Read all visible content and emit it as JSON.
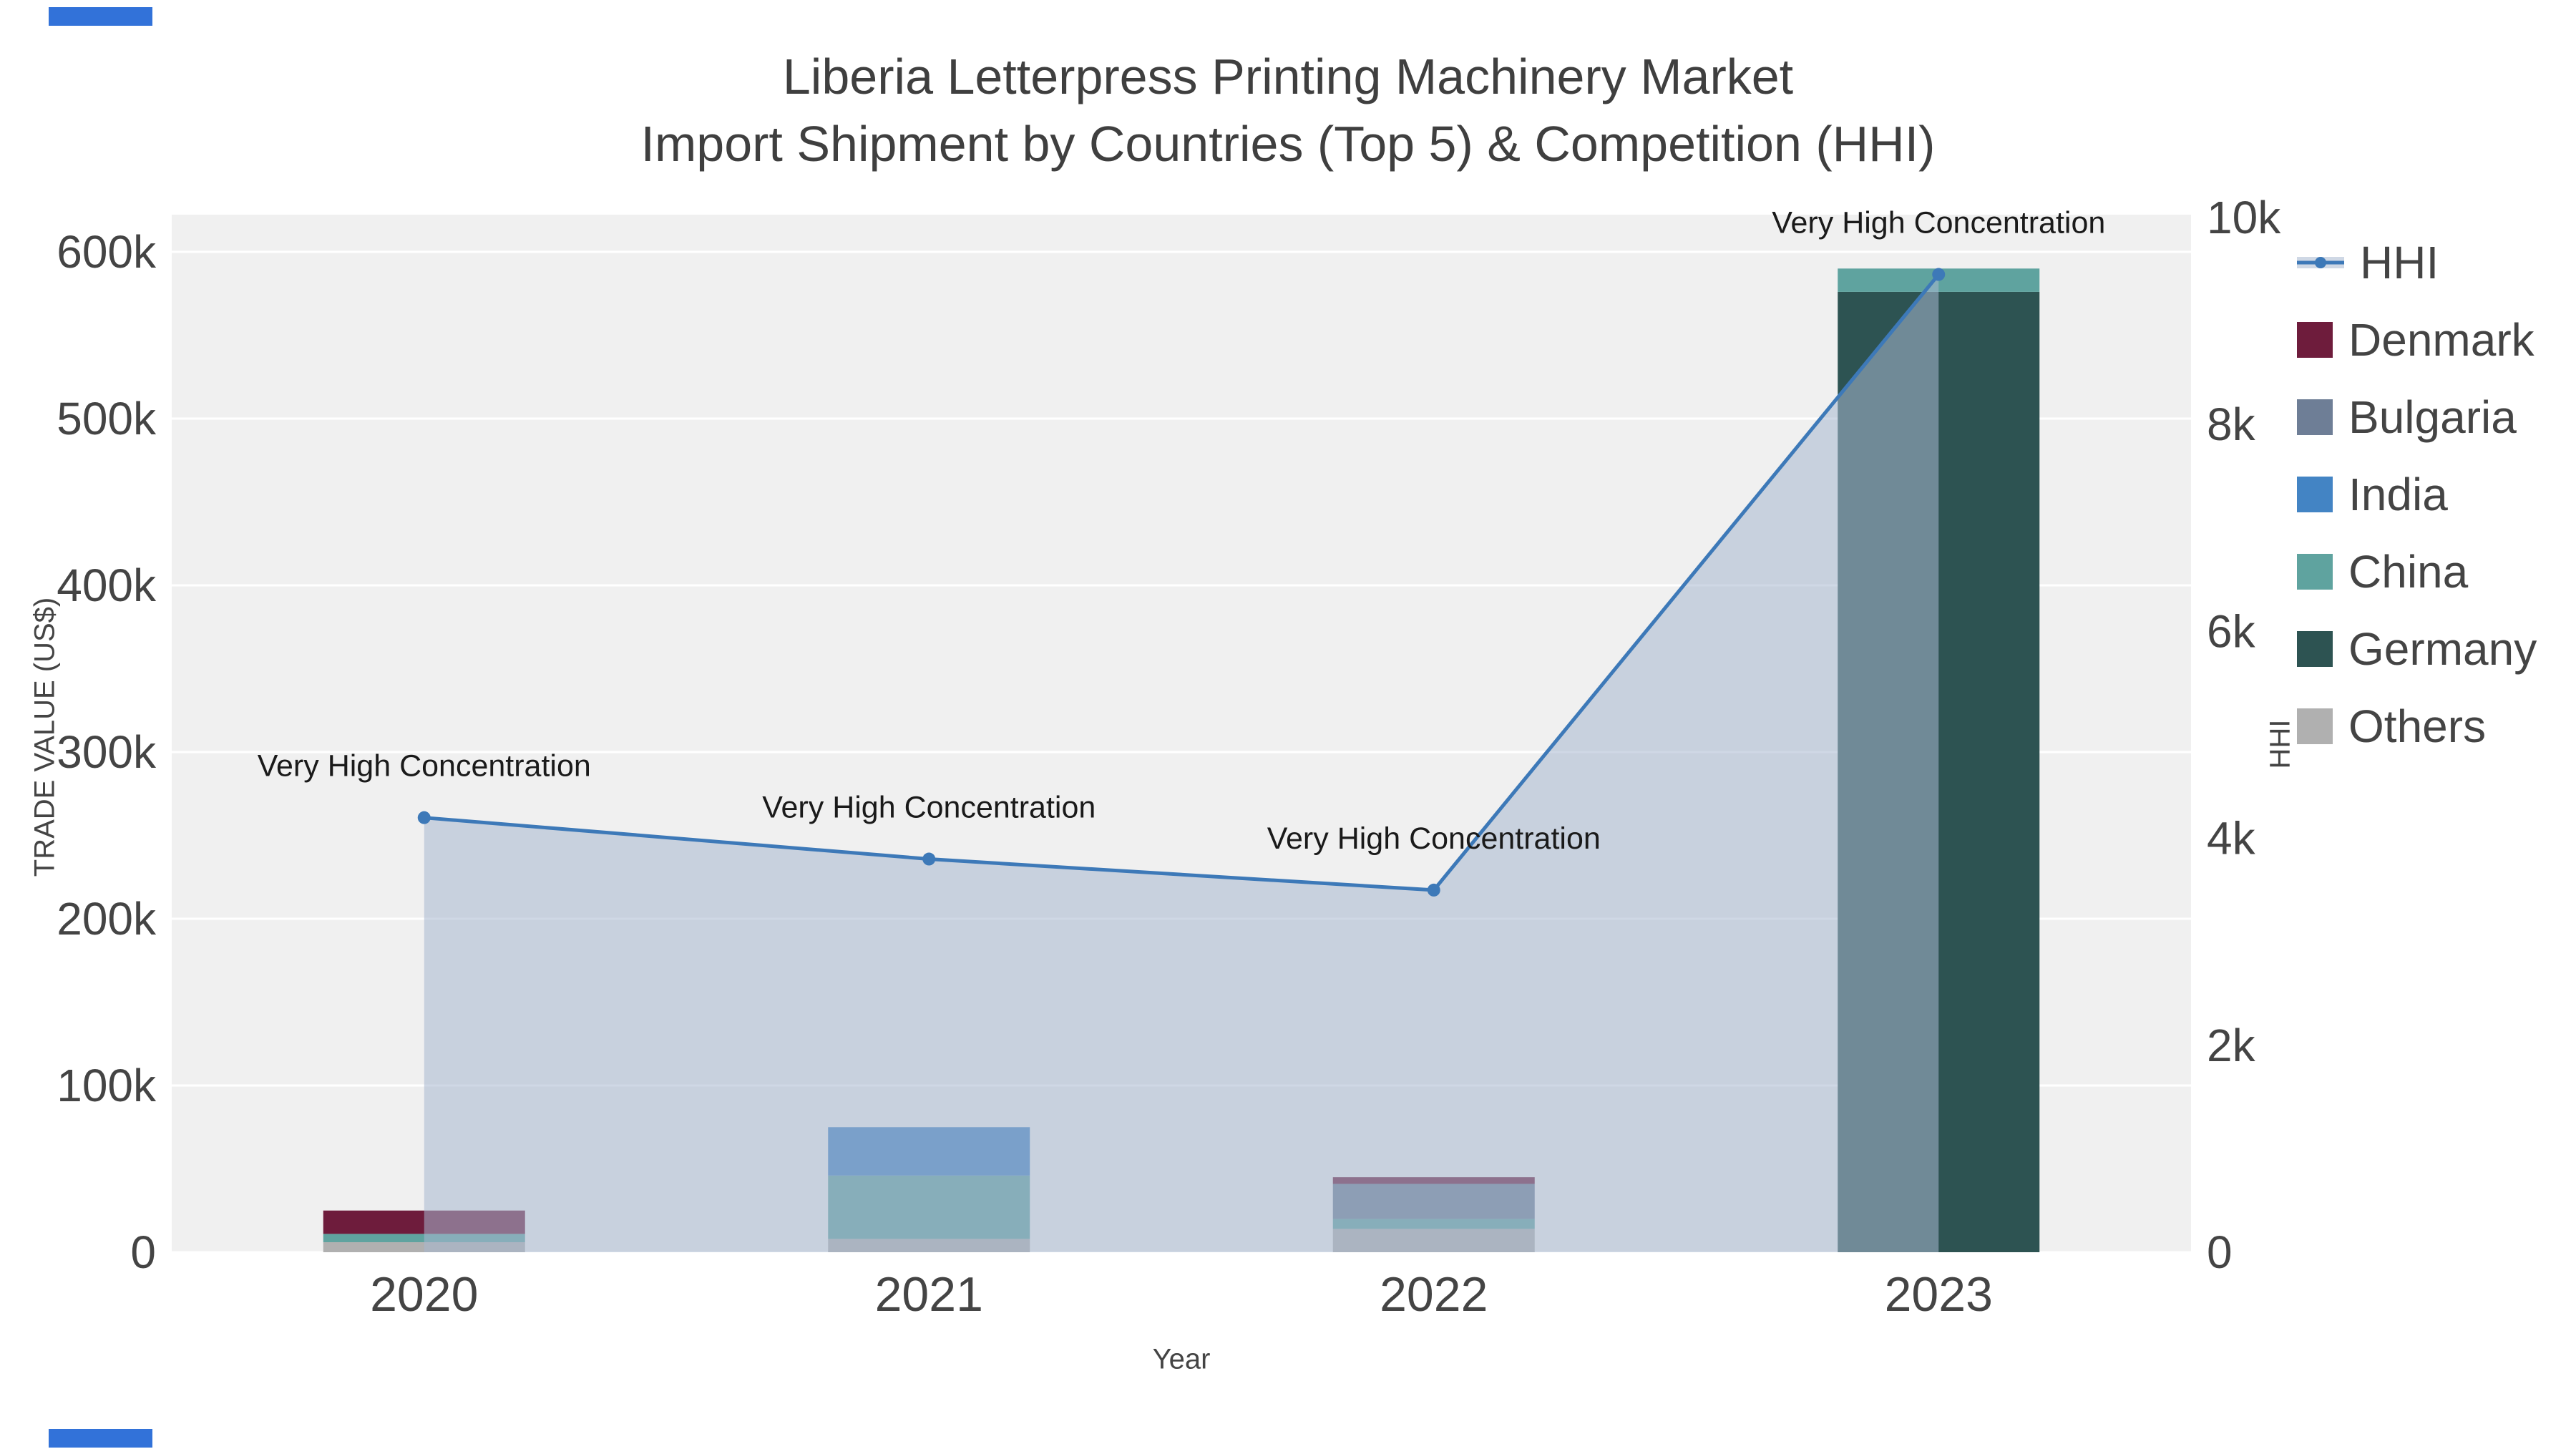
{
  "title": {
    "line1": "Liberia Letterpress Printing Machinery Market",
    "line2": "Import Shipment by Countries (Top 5) & Competition (HHI)"
  },
  "axes": {
    "x_title": "Year",
    "y_left_title": "TRADE VALUE (US$)",
    "y_right_title": "HHI",
    "x_ticks": [
      "2020",
      "2021",
      "2022",
      "2023"
    ],
    "y_left_ticks": [
      {
        "v": 0,
        "label": "0"
      },
      {
        "v": 100000,
        "label": "100k"
      },
      {
        "v": 200000,
        "label": "200k"
      },
      {
        "v": 300000,
        "label": "300k"
      },
      {
        "v": 400000,
        "label": "400k"
      },
      {
        "v": 500000,
        "label": "500k"
      },
      {
        "v": 600000,
        "label": "600k"
      }
    ],
    "y_right_ticks": [
      {
        "v": 0,
        "label": "0"
      },
      {
        "v": 2000,
        "label": "2k"
      },
      {
        "v": 4000,
        "label": "4k"
      },
      {
        "v": 6000,
        "label": "6k"
      },
      {
        "v": 8000,
        "label": "8k"
      },
      {
        "v": 10000,
        "label": "10k"
      }
    ]
  },
  "chart_data": {
    "type": "combo-stacked-bar-line",
    "title": "Liberia Letterpress Printing Machinery Market — Import Shipment by Countries (Top 5) & Competition (HHI)",
    "x": [
      2020,
      2021,
      2022,
      2023
    ],
    "xlabel": "Year",
    "ylabel_left": "TRADE VALUE (US$)",
    "ylabel_right": "HHI",
    "y_left_range": [
      0,
      620000
    ],
    "y_right_range": [
      0,
      10000
    ],
    "grid": true,
    "legend_position": "right",
    "bar_series_stack_bottom_to_top": [
      {
        "name": "Others",
        "color": "#b0b0b0",
        "values": [
          6000,
          8000,
          14000,
          0
        ]
      },
      {
        "name": "Germany",
        "color": "#2d5352",
        "values": [
          0,
          0,
          0,
          576000
        ]
      },
      {
        "name": "China",
        "color": "#5fa39f",
        "values": [
          5000,
          38000,
          6000,
          14000
        ]
      },
      {
        "name": "India",
        "color": "#4384c4",
        "values": [
          0,
          29000,
          0,
          0
        ]
      },
      {
        "name": "Bulgaria",
        "color": "#6e7e96",
        "values": [
          0,
          0,
          21000,
          0
        ]
      },
      {
        "name": "Denmark",
        "color": "#6e1c3c",
        "values": [
          14000,
          0,
          4000,
          0
        ]
      }
    ],
    "bar_totals": [
      25000,
      75000,
      45000,
      590000
    ],
    "line_series": {
      "name": "HHI",
      "axis": "right",
      "color": "#3d79b8",
      "fill_color": "rgba(167,184,208,0.55)",
      "values": [
        4200,
        3800,
        3500,
        9450
      ]
    },
    "annotations": [
      {
        "x_index": 0,
        "text": "Very High Concentration"
      },
      {
        "x_index": 1,
        "text": "Very High Concentration"
      },
      {
        "x_index": 2,
        "text": "Very High Concentration"
      },
      {
        "x_index": 3,
        "text": "Very High Concentration"
      }
    ]
  },
  "legend": {
    "items": [
      {
        "label": "HHI",
        "type": "line",
        "color": "#3d79b8"
      },
      {
        "label": "Denmark",
        "type": "square",
        "color": "#6e1c3c"
      },
      {
        "label": "Bulgaria",
        "type": "square",
        "color": "#6e7e96"
      },
      {
        "label": "India",
        "type": "square",
        "color": "#4384c4"
      },
      {
        "label": "China",
        "type": "square",
        "color": "#5fa39f"
      },
      {
        "label": "Germany",
        "type": "square",
        "color": "#2d5352"
      },
      {
        "label": "Others",
        "type": "square",
        "color": "#b0b0b0"
      }
    ]
  },
  "colors": {
    "plot_background": "#f0f0f0",
    "gridline": "#ffffff",
    "tick_text": "#444444",
    "title_text": "#3f3f3f",
    "annotation_text": "#1a1a1a",
    "corner_strip": "#3272d9"
  }
}
